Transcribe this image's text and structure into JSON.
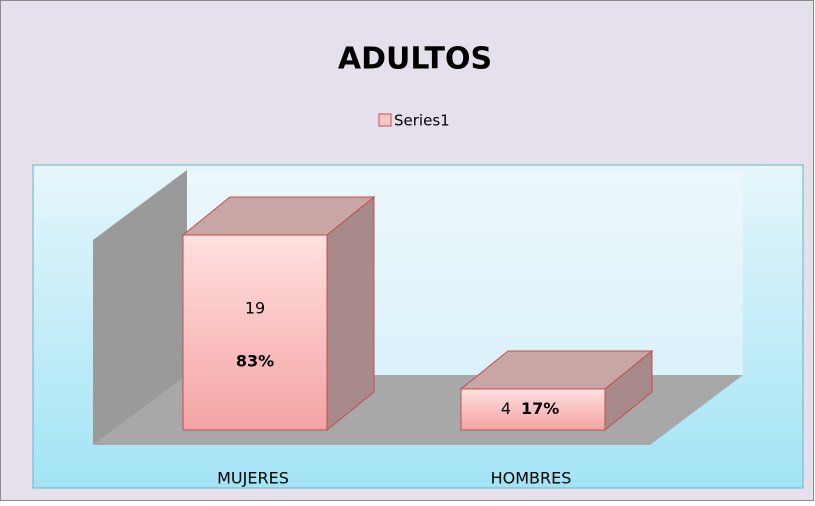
{
  "chart_data": {
    "type": "bar3d",
    "title": "ADULTOS",
    "categories": [
      "MUJERES",
      "HOMBRES"
    ],
    "series": [
      {
        "name": "Series1",
        "color": "#c0504d",
        "values": [
          19,
          4
        ],
        "percent_labels": [
          "83%",
          "17%"
        ]
      }
    ],
    "legend": "top"
  }
}
